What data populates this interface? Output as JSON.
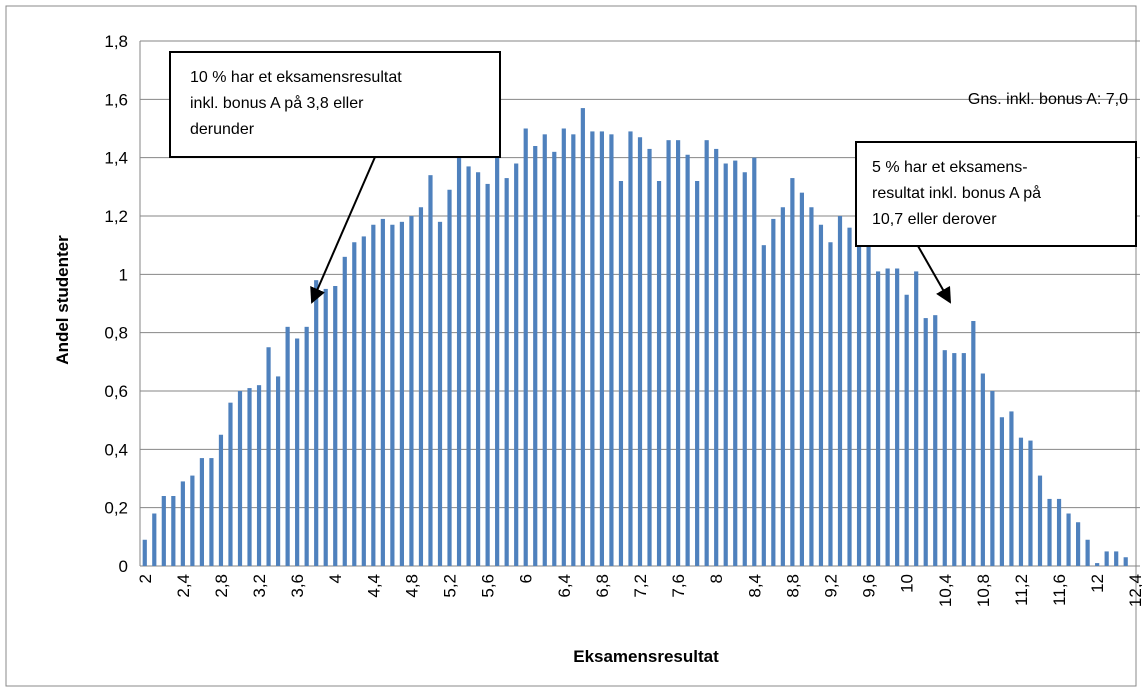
{
  "chart_data": {
    "type": "bar",
    "x_label": "Eksamensresultat",
    "y_label": "Andel studenter",
    "color": "#4f81bd",
    "grid": true,
    "annotations": [
      {
        "lines": [
          "10 % har et eksamensresultat",
          "inkl. bonus A på 3,8 eller",
          "derunder"
        ]
      },
      {
        "lines": [
          "5 % har et eksamens-",
          "resultat inkl. bonus A på",
          "10,7 eller derover"
        ]
      },
      {
        "lines": [
          "Gns. inkl. bonus A: 7,0"
        ]
      }
    ],
    "categories": [
      "2",
      null,
      null,
      null,
      "2,4",
      null,
      null,
      null,
      "2,8",
      null,
      null,
      null,
      "3,2",
      null,
      null,
      null,
      "3,6",
      null,
      null,
      null,
      "4",
      null,
      null,
      null,
      "4,4",
      null,
      null,
      null,
      "4,8",
      null,
      null,
      null,
      "5,2",
      null,
      null,
      null,
      "5,6",
      null,
      null,
      null,
      "6",
      null,
      null,
      null,
      "6,4",
      null,
      null,
      null,
      "6,8",
      null,
      null,
      null,
      "7,2",
      null,
      null,
      null,
      "7,6",
      null,
      null,
      null,
      "8",
      null,
      null,
      null,
      "8,4",
      null,
      null,
      null,
      "8,8",
      null,
      null,
      null,
      "9,2",
      null,
      null,
      null,
      "9,6",
      null,
      null,
      null,
      "10",
      null,
      null,
      null,
      "10,4",
      null,
      null,
      null,
      "10,8",
      null,
      null,
      null,
      "11,2",
      null,
      null,
      null,
      "11,6",
      null,
      null,
      null,
      "12",
      null,
      null,
      null,
      "12,4"
    ],
    "values": [
      0.09,
      0.18,
      0.24,
      0.24,
      0.29,
      0.31,
      0.37,
      0.37,
      0.45,
      0.56,
      0.6,
      0.61,
      0.62,
      0.75,
      0.65,
      0.82,
      0.78,
      0.82,
      0.98,
      0.95,
      0.96,
      1.06,
      1.11,
      1.13,
      1.17,
      1.19,
      1.17,
      1.18,
      1.2,
      1.23,
      1.34,
      1.18,
      1.29,
      1.4,
      1.37,
      1.35,
      1.31,
      1.4,
      1.33,
      1.38,
      1.5,
      1.44,
      1.48,
      1.42,
      1.5,
      1.48,
      1.57,
      1.49,
      1.49,
      1.48,
      1.32,
      1.49,
      1.47,
      1.43,
      1.32,
      1.46,
      1.46,
      1.41,
      1.32,
      1.46,
      1.43,
      1.38,
      1.39,
      1.35,
      1.4,
      1.1,
      1.19,
      1.23,
      1.33,
      1.28,
      1.23,
      1.17,
      1.11,
      1.2,
      1.16,
      1.11,
      1.14,
      1.01,
      1.02,
      1.02,
      0.93,
      1.01,
      0.85,
      0.86,
      0.74,
      0.73,
      0.73,
      0.84,
      0.66,
      0.6,
      0.51,
      0.53,
      0.44,
      0.43,
      0.31,
      0.23,
      0.23,
      0.18,
      0.15,
      0.09,
      0.01,
      0.05,
      0.05,
      0.03,
      0.0
    ],
    "ylim": [
      0,
      1.8
    ],
    "yticks": [
      0,
      {
        "value": 0.2,
        "label": "0,2"
      },
      {
        "value": 0.4,
        "label": "0,4"
      },
      {
        "value": 0.6,
        "label": "0,6"
      },
      {
        "value": 0.8,
        "label": "0,8"
      },
      1,
      {
        "value": 1.2,
        "label": "1,2"
      },
      {
        "value": 1.4,
        "label": "1,4"
      },
      {
        "value": 1.6,
        "label": "1,6"
      },
      {
        "value": 1.8,
        "label": "1,8"
      }
    ]
  }
}
